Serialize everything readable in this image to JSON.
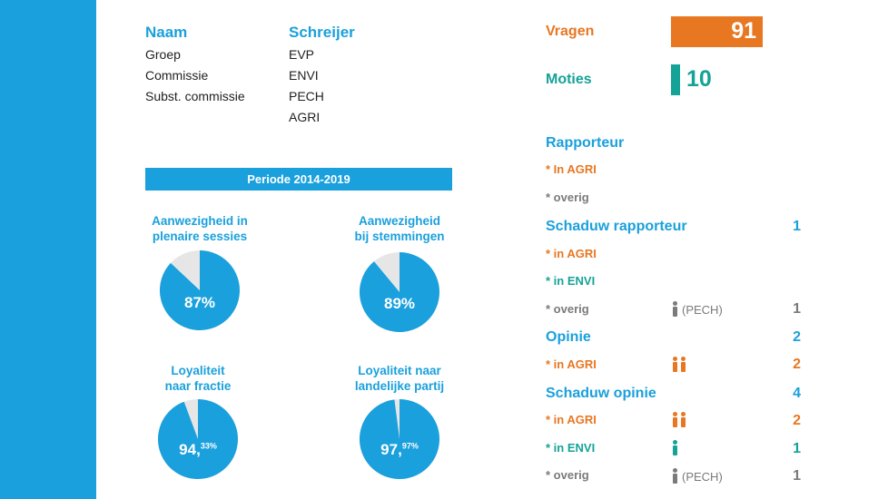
{
  "info": {
    "naam_header": "Naam",
    "schreijer_header": "Schreijer",
    "rows": [
      {
        "label": "Groep",
        "value": "EVP"
      },
      {
        "label": "Commissie",
        "value": "ENVI"
      },
      {
        "label": "Subst. commissie",
        "value": "PECH"
      },
      {
        "label": "",
        "value": "AGRI"
      }
    ]
  },
  "period": "Periode 2014-2019",
  "pies": [
    {
      "title_line1": "Aanwezigheid in",
      "title_line2": "plenaire sessies",
      "value_main": "87%",
      "value_sup": "",
      "percent": 87
    },
    {
      "title_line1": "Aanwezigheid",
      "title_line2": "bij stemmingen",
      "value_main": "89%",
      "value_sup": "",
      "percent": 89
    },
    {
      "title_line1": "Loyaliteit",
      "title_line2": "naar fractie",
      "value_main": "94,",
      "value_sup": "33%",
      "percent": 94.33
    },
    {
      "title_line1": "Loyaliteit naar",
      "title_line2": "landelijke partij",
      "value_main": "97,",
      "value_sup": "97%",
      "percent": 97.97
    }
  ],
  "vragen": {
    "label": "Vragen",
    "value": "91"
  },
  "moties": {
    "label": "Moties",
    "value": "10"
  },
  "rapporteur": {
    "title": "Rapporteur",
    "in_agri": "* In AGRI",
    "overig": "* overig"
  },
  "schaduw_rapporteur": {
    "title": "Schaduw rapporteur",
    "count": "1",
    "in_agri": "* in AGRI",
    "in_envi": "* in ENVI",
    "overig": "* overig",
    "overig_note": "(PECH)",
    "overig_count": "1"
  },
  "opinie": {
    "title": "Opinie",
    "count": "2",
    "in_agri": "* in AGRI",
    "in_agri_count": "2"
  },
  "schaduw_opinie": {
    "title": "Schaduw opinie",
    "count": "4",
    "in_agri": "* in AGRI",
    "in_agri_count": "2",
    "in_envi": "* in ENVI",
    "in_envi_count": "1",
    "overig": "* overig",
    "overig_note": "(PECH)",
    "overig_count": "1"
  },
  "colors": {
    "blue": "#1aa0dc",
    "orange": "#e87722",
    "teal": "#14a396",
    "grey": "#7a7a7a",
    "pie_rest": "#e6e6e6"
  }
}
